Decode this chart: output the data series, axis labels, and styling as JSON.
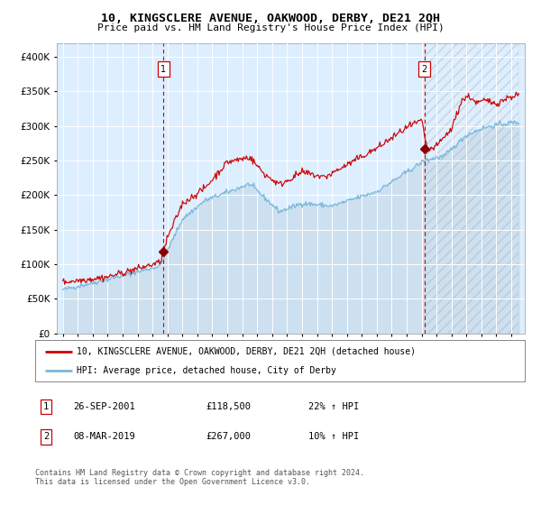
{
  "title": "10, KINGSCLERE AVENUE, OAKWOOD, DERBY, DE21 2QH",
  "subtitle": "Price paid vs. HM Land Registry's House Price Index (HPI)",
  "legend_line1": "10, KINGSCLERE AVENUE, OAKWOOD, DERBY, DE21 2QH (detached house)",
  "legend_line2": "HPI: Average price, detached house, City of Derby",
  "annotation1_date": "26-SEP-2001",
  "annotation1_price": "£118,500",
  "annotation1_hpi": "22% ↑ HPI",
  "annotation2_date": "08-MAR-2019",
  "annotation2_price": "£267,000",
  "annotation2_hpi": "10% ↑ HPI",
  "footnote": "Contains HM Land Registry data © Crown copyright and database right 2024.\nThis data is licensed under the Open Government Licence v3.0.",
  "hpi_color": "#7ab8d9",
  "hpi_fill_color": "#cce0f0",
  "price_color": "#cc0000",
  "marker_color": "#8b0000",
  "vline_color": "#cc0000",
  "plot_bg": "#ddeeff",
  "grid_color": "#ffffff",
  "ylim": [
    0,
    420000
  ],
  "sale1_x": 2001.74,
  "sale1_y": 118500,
  "sale2_x": 2019.19,
  "sale2_y": 267000,
  "xmin": 1994.6,
  "xmax": 2025.9
}
